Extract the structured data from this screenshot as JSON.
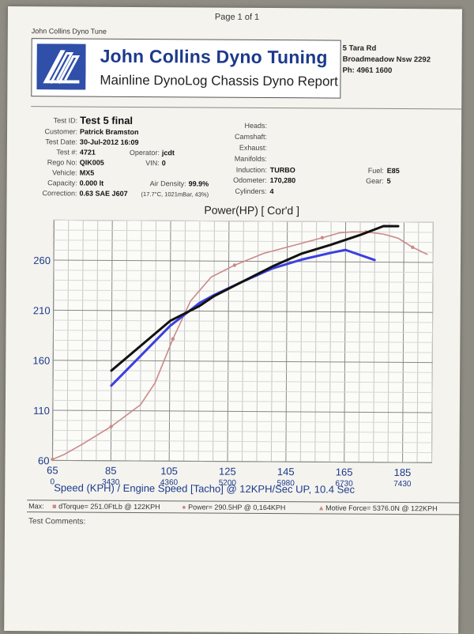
{
  "page": {
    "page_number": "Page 1 of 1",
    "header_small": "John Collins Dyno Tune"
  },
  "brand": {
    "title": "John Collins Dyno Tuning",
    "subtitle": "Mainline DynoLog Chassis Dyno Report",
    "address": [
      "5 Tara Rd",
      "Broadmeadow Nsw 2292",
      "Ph: 4961 1600"
    ],
    "color": "#1c3a8c"
  },
  "test_info": {
    "test_id_label": "Test ID:",
    "test_id": "Test 5 final",
    "customer_label": "Customer:",
    "customer": "Patrick Bramston",
    "test_date_label": "Test Date:",
    "test_date": "30-Jul-2012 16:09",
    "test_num_label": "Test #:",
    "test_num": "4721",
    "operator_label": "Operator:",
    "operator": "jcdt",
    "rego_label": "Rego No:",
    "rego": "QIK005",
    "vin_label": "VIN:",
    "vin": "0",
    "vehicle_label": "Vehicle:",
    "vehicle": "MX5",
    "capacity_label": "Capacity:",
    "capacity": "0.000 lt",
    "air_density_label": "Air Density:",
    "air_density": "99.9%",
    "correction_label": "Correction:",
    "correction": "0.63 SAE J607",
    "correction_detail": "(17.7°C, 1021mBar, 43%)",
    "heads_label": "Heads:",
    "camshaft_label": "Camshaft:",
    "exhaust_label": "Exhaust:",
    "manifolds_label": "Manifolds:",
    "induction_label": "Induction:",
    "induction": "TURBO",
    "odometer_label": "Odometer:",
    "odometer": "170,280",
    "cylinders_label": "Cylinders:",
    "cylinders": "4",
    "fuel_label": "Fuel:",
    "fuel": "E85",
    "gear_label": "Gear:",
    "gear": "5"
  },
  "chart_data": {
    "type": "line",
    "title": "Power(HP)",
    "title_tag": "[ Cor'd ]",
    "xlabel": "Speed (KPH) / Engine Speed [Tacho] @ 12KPH/Sec UP, 10.4 Sec",
    "xlim": [
      65,
      195
    ],
    "ylim": [
      60,
      300
    ],
    "x_ticks": [
      "65",
      "85",
      "105",
      "125",
      "145",
      "165",
      "185"
    ],
    "x_tick_values": [
      65,
      85,
      105,
      125,
      145,
      165,
      185
    ],
    "rpm_ticks": [
      "0",
      "3430",
      "4360",
      "5200",
      "5980",
      "6730",
      "7430"
    ],
    "y_ticks": [
      "60",
      "110",
      "160",
      "210",
      "260"
    ],
    "y_tick_values": [
      60,
      110,
      160,
      210,
      260
    ],
    "grid": true,
    "series": [
      {
        "color": "#c98a88",
        "x": [
          65,
          69,
          75,
          85,
          95,
          100,
          106,
          112,
          119,
          127,
          137,
          147,
          157,
          163,
          167,
          172,
          178,
          183,
          188,
          193
        ],
        "y": [
          61,
          66,
          76,
          94,
          116,
          138,
          182,
          220,
          244,
          256,
          268,
          276,
          284,
          289,
          290,
          290,
          288,
          284,
          275,
          268
        ]
      },
      {
        "color": "#3b3fe0",
        "x": [
          85,
          95,
          105,
          115,
          120,
          130,
          140,
          150,
          160,
          165,
          175
        ],
        "y": [
          135,
          165,
          195,
          218,
          226,
          240,
          253,
          262,
          269,
          272,
          262
        ]
      },
      {
        "color": "#111111",
        "x": [
          85,
          95,
          105,
          115,
          120,
          130,
          140,
          150,
          160,
          170,
          178,
          183
        ],
        "y": [
          150,
          175,
          200,
          215,
          225,
          240,
          255,
          268,
          277,
          287,
          296,
          296
        ]
      }
    ]
  },
  "max_line": {
    "label": "Max:",
    "torque": "dTorque= 251.0FtLb @ 122KPH",
    "power": "Power= 290.5HP @ 0,164KPH",
    "force": "Motive Force= 5376.0N @ 122KPH"
  },
  "comments": {
    "label": "Test Comments:"
  }
}
